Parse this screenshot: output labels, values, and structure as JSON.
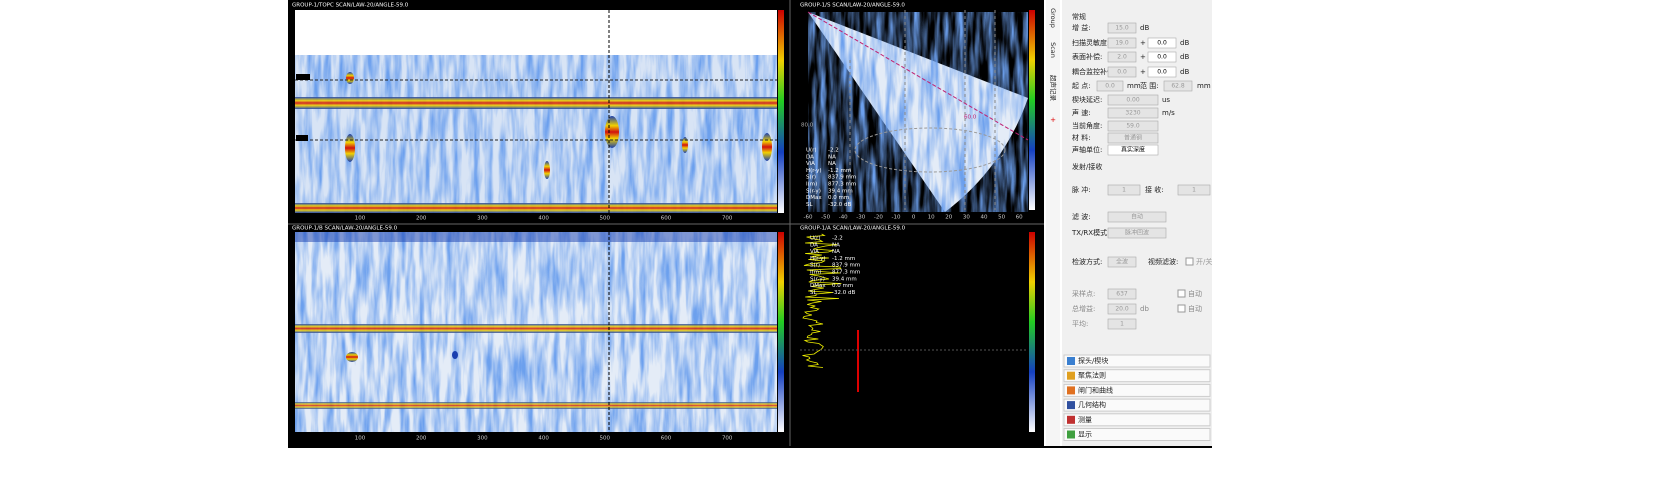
{
  "panels": [
    {
      "title": "GROUP-1/TOPC SCAN/LAW-20/ANGLE-59.0"
    },
    {
      "title": "GROUP-1/B SCAN/LAW-20/ANGLE-59.0"
    },
    {
      "title": "GROUP-1/S SCAN/LAW-20/ANGLE-59.0"
    },
    {
      "title": "GROUP-1/A SCAN/LAW-20/ANGLE-59.0"
    }
  ],
  "scan_axis": [
    "100",
    "200",
    "300",
    "400",
    "500",
    "600",
    "700"
  ],
  "s_axis": [
    "-60",
    "-50",
    "-40",
    "-30",
    "-20",
    "-10",
    "0",
    "10",
    "20",
    "30",
    "40",
    "50",
    "60"
  ],
  "s_annotations": [
    "80.0",
    "60.0"
  ],
  "readouts": [
    {
      "label": "U(r)",
      "value": "-2.2"
    },
    {
      "label": "DA",
      "value": "NA"
    },
    {
      "label": "ViA",
      "value": "NA"
    },
    {
      "label": "H(r-y)",
      "value": "-1.2 mm"
    },
    {
      "label": "S(r)",
      "value": "837.9 mm"
    },
    {
      "label": "I(m)",
      "value": "877.3 mm"
    },
    {
      "label": "S(r-y)",
      "value": "39.4 mm"
    },
    {
      "label": "DMax",
      "value": "0.0 mm"
    },
    {
      "label": "SL",
      "value": "-32.0 dB"
    }
  ],
  "side_tabs": [
    "Group",
    "Scan",
    "超声记录"
  ],
  "settings": {
    "section1": "常规",
    "gain": {
      "label": "增 益:",
      "value": "15.0",
      "unit": "dB"
    },
    "scan_sens": {
      "label": "扫描灵敏度:",
      "value": "19.0",
      "op": "+",
      "offset": "0.0",
      "unit": "dB"
    },
    "surface": {
      "label": "表面补偿:",
      "value": "2.0",
      "op": "+",
      "offset": "0.0",
      "unit": "dB"
    },
    "coupling": {
      "label": "耦合监控补偿:",
      "value": "0.0",
      "op": "+",
      "offset": "0.0",
      "unit": "dB"
    },
    "start": {
      "label": "起 点:",
      "value": "0.0",
      "unit": "mm"
    },
    "range": {
      "label": "范 围:",
      "value": "62.8",
      "unit": "mm"
    },
    "wedge_delay": {
      "label": "楔块延迟:",
      "value": "0.00",
      "unit": "us"
    },
    "velocity": {
      "label": "声 速:",
      "value": "3230",
      "unit": "m/s"
    },
    "angle": {
      "label": "当前角度:",
      "value": "59.0"
    },
    "material": {
      "label": "材 料:",
      "value": "普通钢"
    },
    "axis_unit": {
      "label": "声轴单位:",
      "value": "真实深度"
    },
    "section2": "发射/接收",
    "pulser": {
      "label": "脉 冲:",
      "value": "1"
    },
    "receiver": {
      "label": "接 收:",
      "value": "1"
    },
    "filter": {
      "label": "滤 波:",
      "value": "自动"
    },
    "txrx": {
      "label": "TX/RX模式:",
      "value": "脉冲回波"
    },
    "rectify": {
      "label": "检波方式:",
      "value": "全波"
    },
    "video_filter": {
      "label": "视频滤波:",
      "value": "开/关"
    },
    "points": {
      "label": "采样点:",
      "value": "637",
      "check": "自动"
    },
    "total_gain": {
      "label": "总增益:",
      "value": "20.0",
      "unit": "db",
      "check": "自动"
    },
    "average": {
      "label": "平均:",
      "value": "1"
    }
  },
  "menu": [
    "探头/楔块",
    "聚焦法则",
    "闸门和曲线",
    "几何结构",
    "测量",
    "显示"
  ]
}
